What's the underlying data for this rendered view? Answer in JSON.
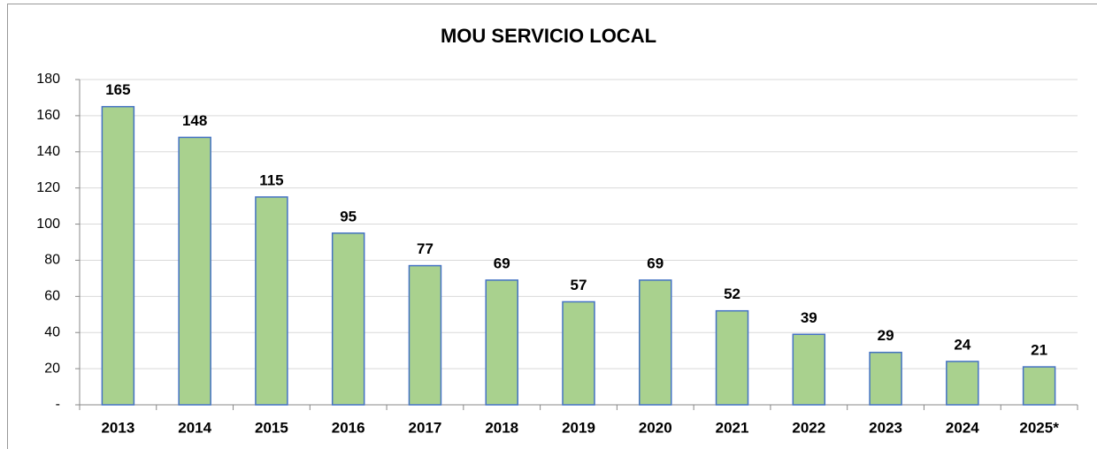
{
  "chart_data": {
    "type": "bar",
    "title": "MOU SERVICIO LOCAL",
    "categories": [
      "2013",
      "2014",
      "2015",
      "2016",
      "2017",
      "2018",
      "2019",
      "2020",
      "2021",
      "2022",
      "2023",
      "2024",
      "2025*"
    ],
    "values": [
      165,
      148,
      115,
      95,
      77,
      69,
      57,
      69,
      52,
      39,
      29,
      24,
      21
    ],
    "color": "#a9d18e",
    "edge_color": "#4472c4",
    "ylim": [
      0,
      180
    ],
    "yticks": [
      {
        "value": 0,
        "label": "-"
      },
      20,
      40,
      60,
      80,
      100,
      120,
      140,
      160,
      180
    ],
    "grid": true
  }
}
